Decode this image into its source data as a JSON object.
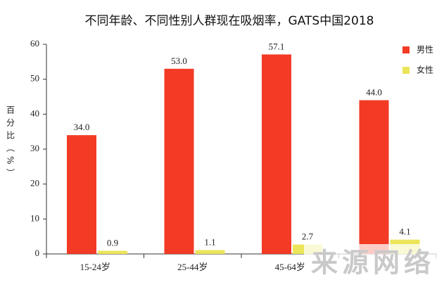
{
  "chart_data": {
    "type": "bar",
    "title": "不同年龄、不同性别人群现在吸烟率，GATS中国2018",
    "y_label": "百分比（%）",
    "categories": [
      "15-24岁",
      "25-44岁",
      "45-64岁",
      null
    ],
    "series": [
      {
        "name": "男性",
        "color": "#f23a25",
        "values": [
          34.0,
          53.0,
          57.1,
          44.0
        ],
        "value_labels": [
          "34.0",
          "53.0",
          "57.1",
          "44.0"
        ]
      },
      {
        "name": "女性",
        "color": "#ebe55a",
        "values": [
          0.9,
          1.1,
          2.7,
          4.1
        ]
      }
    ],
    "ylim": [
      0,
      60
    ],
    "yticks": [
      0,
      10,
      20,
      30,
      40,
      50,
      60
    ],
    "legend": "top-right",
    "watermark": "来源网络"
  }
}
